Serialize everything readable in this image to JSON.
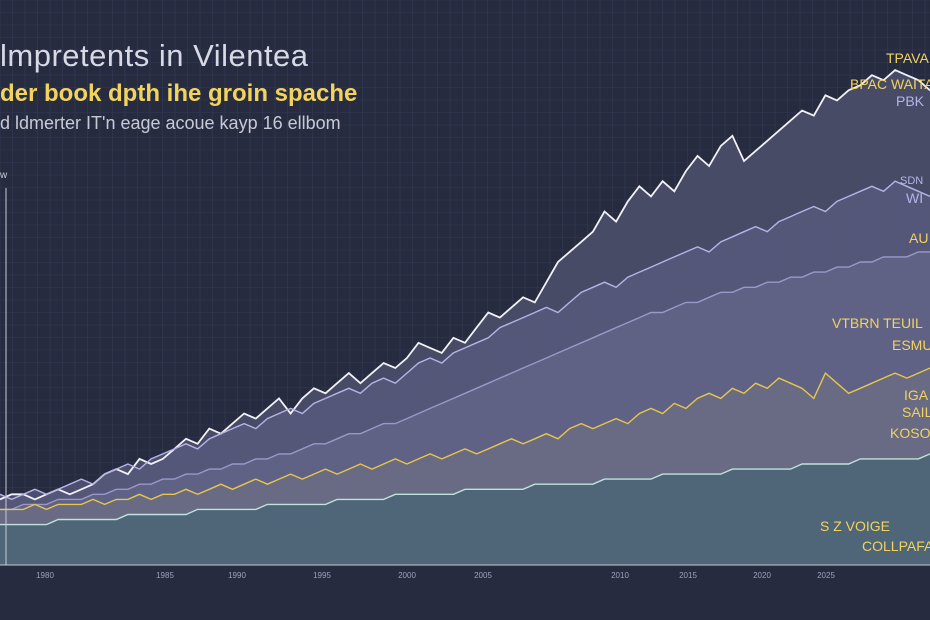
{
  "header": {
    "line1": "lmpretents in Vilentea",
    "line2": "der book dpth ihe groin spache",
    "line3": "d ldmerter IT'n eage acoue kayp 16 ellbom"
  },
  "colors": {
    "background": "#262b40",
    "grid": "#353b55",
    "white_series": "#f2f2f6",
    "lavender_series": "#b7b3e8",
    "yellow_series": "#e8c64a",
    "teal_series": "#bfe3dc",
    "label_yellow": "#f2d35e",
    "label_lavender": "#b7b3e8"
  },
  "chart_data": {
    "type": "area",
    "ylabel": "w",
    "x_ticks": [
      "1980",
      "1985",
      "1990",
      "1995",
      "2000",
      "2005",
      "2010",
      "2015",
      "2020",
      "2025"
    ],
    "ylim": [
      0,
      100
    ],
    "grid": true,
    "series": [
      {
        "name": "TPAVA",
        "color": "#f2f2f6",
        "values": [
          13,
          14,
          14,
          13,
          14,
          15,
          14,
          15,
          16,
          18,
          19,
          18,
          21,
          20,
          21,
          23,
          25,
          24,
          27,
          26,
          28,
          30,
          29,
          31,
          33,
          30,
          33,
          35,
          34,
          36,
          38,
          36,
          38,
          40,
          39,
          41,
          44,
          43,
          42,
          45,
          44,
          47,
          50,
          49,
          51,
          53,
          52,
          56,
          60,
          62,
          64,
          66,
          70,
          68,
          72,
          75,
          73,
          76,
          74,
          78,
          81,
          79,
          83,
          85,
          80,
          82,
          84,
          86,
          88,
          90,
          89,
          93,
          92,
          94,
          95,
          97,
          96,
          98,
          97,
          96,
          94
        ]
      },
      {
        "name": "SDN",
        "color": "#b7b3e8",
        "values": [
          14,
          13,
          14,
          15,
          14,
          15,
          16,
          17,
          16,
          18,
          19,
          20,
          19,
          21,
          22,
          23,
          24,
          23,
          25,
          26,
          27,
          28,
          27,
          29,
          30,
          31,
          30,
          32,
          33,
          34,
          35,
          34,
          36,
          37,
          36,
          38,
          40,
          41,
          40,
          42,
          43,
          44,
          45,
          47,
          48,
          49,
          50,
          51,
          50,
          52,
          54,
          55,
          56,
          55,
          57,
          58,
          59,
          60,
          61,
          62,
          63,
          62,
          64,
          65,
          66,
          67,
          66,
          68,
          69,
          70,
          71,
          70,
          72,
          73,
          74,
          75,
          74,
          76,
          75,
          74,
          73
        ]
      },
      {
        "name": "VTBRN TEUIL",
        "color": "#9b98c8",
        "values": [
          11,
          11,
          12,
          12,
          12,
          13,
          13,
          13,
          14,
          14,
          15,
          15,
          16,
          16,
          17,
          17,
          18,
          18,
          19,
          19,
          20,
          20,
          21,
          21,
          22,
          22,
          23,
          24,
          24,
          25,
          26,
          26,
          27,
          28,
          28,
          29,
          30,
          31,
          32,
          33,
          34,
          35,
          36,
          37,
          38,
          39,
          40,
          41,
          42,
          43,
          44,
          45,
          46,
          47,
          48,
          49,
          50,
          50,
          51,
          52,
          52,
          53,
          54,
          54,
          55,
          55,
          56,
          56,
          57,
          57,
          58,
          58,
          59,
          59,
          60,
          60,
          61,
          61,
          61,
          62,
          62
        ]
      },
      {
        "name": "IGA SAIL KOSO",
        "color": "#e8c64a",
        "values": [
          11,
          11,
          11,
          12,
          11,
          12,
          12,
          12,
          13,
          12,
          13,
          13,
          14,
          13,
          14,
          14,
          15,
          14,
          15,
          16,
          15,
          16,
          17,
          16,
          17,
          18,
          17,
          18,
          19,
          18,
          19,
          20,
          19,
          20,
          21,
          20,
          21,
          22,
          21,
          22,
          23,
          22,
          23,
          24,
          25,
          24,
          25,
          26,
          25,
          27,
          28,
          27,
          28,
          29,
          28,
          30,
          31,
          30,
          32,
          31,
          33,
          34,
          33,
          35,
          34,
          36,
          35,
          37,
          36,
          35,
          33,
          38,
          36,
          34,
          35,
          36,
          37,
          38,
          37,
          38,
          39
        ]
      },
      {
        "name": "S Z VOIGE COLLPAFAX",
        "color": "#bfe3dc",
        "values": [
          8,
          8,
          8,
          8,
          8,
          9,
          9,
          9,
          9,
          9,
          9,
          10,
          10,
          10,
          10,
          10,
          10,
          11,
          11,
          11,
          11,
          11,
          11,
          12,
          12,
          12,
          12,
          12,
          12,
          13,
          13,
          13,
          13,
          13,
          14,
          14,
          14,
          14,
          14,
          14,
          15,
          15,
          15,
          15,
          15,
          15,
          16,
          16,
          16,
          16,
          16,
          16,
          17,
          17,
          17,
          17,
          17,
          18,
          18,
          18,
          18,
          18,
          18,
          19,
          19,
          19,
          19,
          19,
          19,
          20,
          20,
          20,
          20,
          20,
          21,
          21,
          21,
          21,
          21,
          21,
          22
        ]
      }
    ]
  },
  "labels": {
    "top": [
      "TPAVA",
      "BPAC WAITAL",
      "PBK"
    ],
    "mid_upper": [
      "SDN",
      "WI",
      "AU"
    ],
    "mid": [
      "VTBRN TEUIL",
      "ESMU"
    ],
    "lower": [
      "IGA",
      "SAIL",
      "KOSO"
    ],
    "bottom": [
      "S Z VOIGE",
      "COLLPAFAX"
    ]
  }
}
